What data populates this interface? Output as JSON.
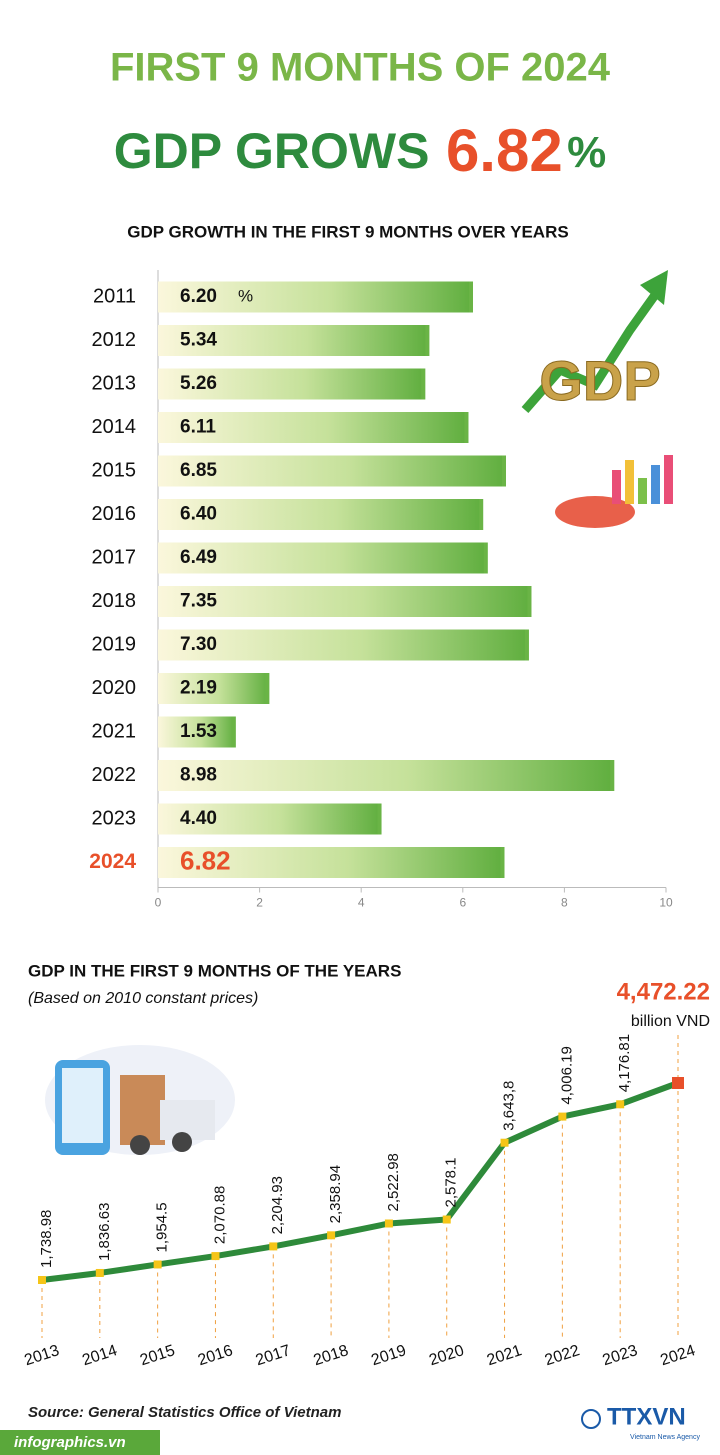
{
  "header": {
    "title": "FIRST 9 MONTHS OF 2024",
    "headline": "GDP GROWS",
    "headline_value": "6.82",
    "headline_unit": "%"
  },
  "chart_data": [
    {
      "type": "hbar",
      "title": "GDP GROWTH IN THE FIRST 9 MONTHS OVER YEARS",
      "categories": [
        "2011",
        "2012",
        "2013",
        "2014",
        "2015",
        "2016",
        "2017",
        "2018",
        "2019",
        "2020",
        "2021",
        "2022",
        "2023",
        "2024"
      ],
      "values": [
        6.2,
        5.34,
        5.26,
        6.11,
        6.85,
        6.4,
        6.49,
        7.35,
        7.3,
        2.19,
        1.53,
        8.98,
        4.4,
        6.82
      ],
      "value_labels": [
        "6.20",
        "5.34",
        "5.26",
        "6.11",
        "6.85",
        "6.40",
        "6.49",
        "7.35",
        "7.30",
        "2.19",
        "1.53",
        "8.98",
        "4.40",
        "6.82"
      ],
      "unit": "%",
      "color": "#6ab446",
      "highlight_color": "#e8502a",
      "xlim": [
        0,
        10
      ],
      "xticks": [
        0,
        2,
        4,
        6,
        8,
        10
      ]
    },
    {
      "type": "line",
      "title": "GDP IN THE FIRST 9 MONTHS OF THE YEARS",
      "subtitle": "(Based on 2010 constant prices)",
      "categories": [
        "2013",
        "2014",
        "2015",
        "2016",
        "2017",
        "2018",
        "2019",
        "2020",
        "2021",
        "2022",
        "2023",
        "2024"
      ],
      "values": [
        1738.98,
        1836.63,
        1954.5,
        2070.88,
        2204.93,
        2358.94,
        2522.98,
        2578.1,
        3643.8,
        4006.19,
        4176.81,
        4472.22
      ],
      "value_labels": [
        "1,738.98",
        "1,836.63",
        "1,954.5",
        "2,070.88",
        "2,204.93",
        "2,358.94",
        "2,522.98",
        "2,578.1",
        "3,643,8",
        "4,006.19",
        "4,176.81",
        "4,472.22"
      ],
      "unit": "billion VND",
      "color": "#2e8a3a",
      "marker_color": "#f5c518",
      "highlight_color": "#e8502a"
    }
  ],
  "footer": {
    "source": "Source: General Statistics Office of Vietnam",
    "site": "infographics.vn",
    "logo": "TTXVN",
    "logo_sub": "Vietnam News Agency"
  }
}
